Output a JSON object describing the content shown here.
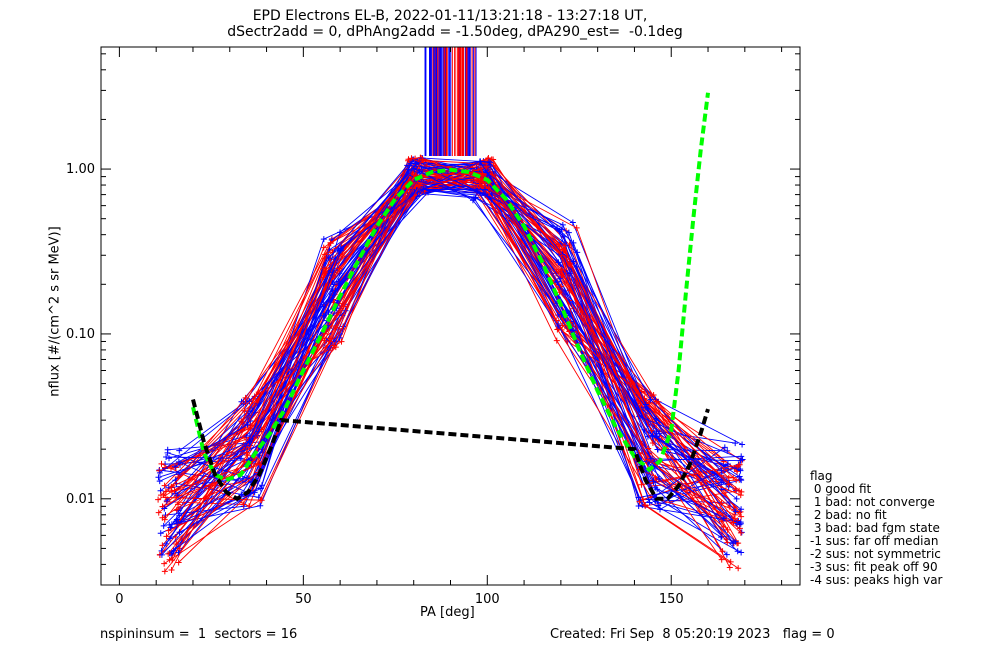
{
  "header": {
    "title_line1": "EPD Electrons EL-B, 2022-01-11/13:21:18 - 13:27:18 UT,",
    "title_line2": "dSectr2add = 0, dPhAng2add = -1.50deg, dPA290_est=  -0.1deg"
  },
  "footer": {
    "left": "nspininsum =  1  sectors = 16",
    "right": "Created: Fri Sep  8 05:20:19 2023   flag = 0"
  },
  "legend": {
    "title": "flag",
    "items": [
      " 0 good fit",
      " 1 bad: not converge",
      " 2 bad: no fit",
      " 3 bad: bad fgm state",
      "-1 sus: far off median",
      "-2 sus: not symmetric",
      "-3 sus: fit peak off 90",
      "-4 sus: peaks high var"
    ]
  },
  "colors": {
    "series_a": "#ff0000",
    "series_b": "#0000ff",
    "fit_green": "#00ff00",
    "fit_black": "#000000"
  },
  "chart_data": {
    "type": "line",
    "title": "EPD Electrons EL-B, 2022-01-11/13:21:18 - 13:27:18 UT,",
    "subtitle": "dSectr2add = 0, dPhAng2add = -1.50deg, dPA290_est=  -0.1deg",
    "xlabel": "PA [deg]",
    "ylabel": "nflux [#/(cm^2 s sr MeV)]",
    "xlim": [
      -5,
      185
    ],
    "ylim": [
      0.003,
      5.5
    ],
    "yscale": "log",
    "x_ticks": [
      0,
      50,
      100,
      150
    ],
    "x_tick_labels": [
      "0",
      "50",
      "100",
      "150"
    ],
    "y_ticks": [
      0.01,
      0.1,
      1.0
    ],
    "y_tick_labels": [
      "0.01",
      "0.10",
      "1.00"
    ],
    "grid": false,
    "sector_pa": [
      13.5,
      36,
      58.5,
      81,
      99,
      121.5,
      144,
      166.5
    ],
    "series_groups": [
      {
        "color": "red",
        "typical_profile": [
          0.008,
          0.02,
          0.18,
          0.9,
          0.9,
          0.2,
          0.02,
          0.008
        ],
        "profile_spread": "~0.3 decades scatter per point"
      },
      {
        "color": "blue",
        "typical_profile": [
          0.01,
          0.018,
          0.2,
          0.9,
          0.85,
          0.22,
          0.018,
          0.01
        ],
        "profile_spread": "~0.3 decades scatter per point"
      }
    ],
    "fit_curves": [
      {
        "color": "green",
        "style": "dashed",
        "x": [
          20,
          23,
          26,
          29,
          33,
          37,
          41,
          45,
          50,
          55,
          60,
          65,
          70,
          75,
          80,
          85,
          90,
          95,
          100,
          105,
          110,
          115,
          120,
          125,
          130,
          135,
          140,
          144,
          147,
          150,
          152,
          154,
          156,
          158,
          160
        ],
        "y": [
          0.036,
          0.019,
          0.014,
          0.013,
          0.014,
          0.019,
          0.025,
          0.035,
          0.06,
          0.1,
          0.17,
          0.28,
          0.45,
          0.66,
          0.86,
          0.96,
          0.99,
          0.96,
          0.86,
          0.66,
          0.45,
          0.27,
          0.15,
          0.08,
          0.045,
          0.027,
          0.018,
          0.015,
          0.017,
          0.026,
          0.06,
          0.18,
          0.5,
          1.3,
          2.9
        ]
      },
      {
        "color": "black",
        "style": "dashed",
        "x": [
          20,
          23,
          26,
          29,
          32,
          35,
          38,
          41,
          44,
          140,
          143,
          146,
          149,
          152,
          155,
          158,
          160
        ],
        "y": [
          0.04,
          0.022,
          0.014,
          0.011,
          0.01,
          0.011,
          0.014,
          0.02,
          0.03,
          0.02,
          0.013,
          0.01,
          0.01,
          0.012,
          0.016,
          0.025,
          0.035
        ]
      }
    ],
    "vertical_lines": {
      "x_range": [
        83,
        97
      ],
      "y_from": 1.2,
      "colors": [
        "red",
        "blue"
      ]
    }
  }
}
